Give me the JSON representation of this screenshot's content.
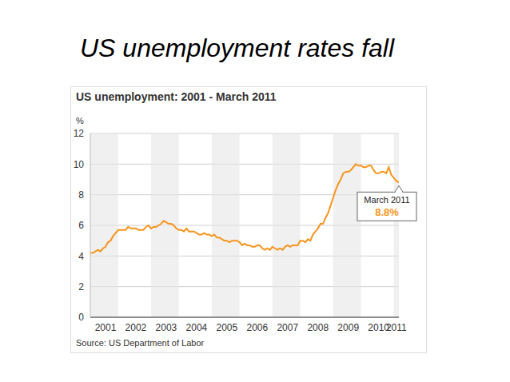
{
  "slide_title": "US unemployment rates fall",
  "chart_data": {
    "type": "line",
    "title": "US unemployment: 2001 - March 2011",
    "y_label": "%",
    "source": "Source: US Department of Labor",
    "categories": [
      null,
      null,
      null,
      null,
      null,
      null,
      "2001",
      null,
      null,
      null,
      null,
      null,
      null,
      null,
      null,
      null,
      null,
      null,
      "2002",
      null,
      null,
      null,
      null,
      null,
      null,
      null,
      null,
      null,
      null,
      null,
      "2003",
      null,
      null,
      null,
      null,
      null,
      null,
      null,
      null,
      null,
      null,
      null,
      "2004",
      null,
      null,
      null,
      null,
      null,
      null,
      null,
      null,
      null,
      null,
      null,
      "2005",
      null,
      null,
      null,
      null,
      null,
      null,
      null,
      null,
      null,
      null,
      null,
      "2006",
      null,
      null,
      null,
      null,
      null,
      null,
      null,
      null,
      null,
      null,
      null,
      "2007",
      null,
      null,
      null,
      null,
      null,
      null,
      null,
      null,
      null,
      null,
      null,
      "2008",
      null,
      null,
      null,
      null,
      null,
      null,
      null,
      null,
      null,
      null,
      null,
      "2009",
      null,
      null,
      null,
      null,
      null,
      null,
      null,
      null,
      null,
      null,
      null,
      "2010",
      null,
      null,
      null,
      null,
      null,
      null,
      "2011",
      null
    ],
    "values": [
      4.2,
      4.2,
      4.3,
      4.4,
      4.3,
      4.5,
      4.6,
      4.9,
      5.0,
      5.3,
      5.5,
      5.7,
      5.7,
      5.7,
      5.7,
      5.9,
      5.8,
      5.8,
      5.8,
      5.7,
      5.7,
      5.7,
      5.9,
      6.0,
      5.8,
      5.9,
      5.9,
      6.0,
      6.1,
      6.3,
      6.2,
      6.1,
      6.1,
      6.0,
      5.8,
      5.7,
      5.7,
      5.6,
      5.8,
      5.6,
      5.6,
      5.6,
      5.5,
      5.4,
      5.4,
      5.5,
      5.4,
      5.4,
      5.3,
      5.4,
      5.2,
      5.2,
      5.1,
      5.0,
      5.0,
      4.9,
      5.0,
      5.0,
      5.0,
      4.9,
      4.7,
      4.8,
      4.7,
      4.7,
      4.6,
      4.6,
      4.7,
      4.7,
      4.5,
      4.4,
      4.5,
      4.4,
      4.6,
      4.5,
      4.4,
      4.5,
      4.4,
      4.6,
      4.7,
      4.6,
      4.7,
      4.7,
      4.7,
      5.0,
      5.0,
      4.9,
      5.1,
      5.0,
      5.4,
      5.6,
      5.8,
      6.1,
      6.1,
      6.5,
      6.8,
      7.3,
      7.8,
      8.3,
      8.7,
      9.0,
      9.4,
      9.5,
      9.5,
      9.6,
      9.8,
      10.0,
      9.9,
      9.9,
      9.8,
      9.8,
      9.9,
      9.9,
      9.6,
      9.4,
      9.4,
      9.5,
      9.5,
      9.4,
      9.8,
      9.3,
      9.1,
      8.9,
      8.8
    ],
    "color": "#f7941d",
    "ylim": [
      0,
      12
    ],
    "yticks": [
      0,
      2,
      4,
      6,
      8,
      10,
      12
    ],
    "grid": true,
    "annotations": [
      {
        "text": "March 2011",
        "value": 8.8,
        "value_label": "8.8%"
      }
    ]
  }
}
